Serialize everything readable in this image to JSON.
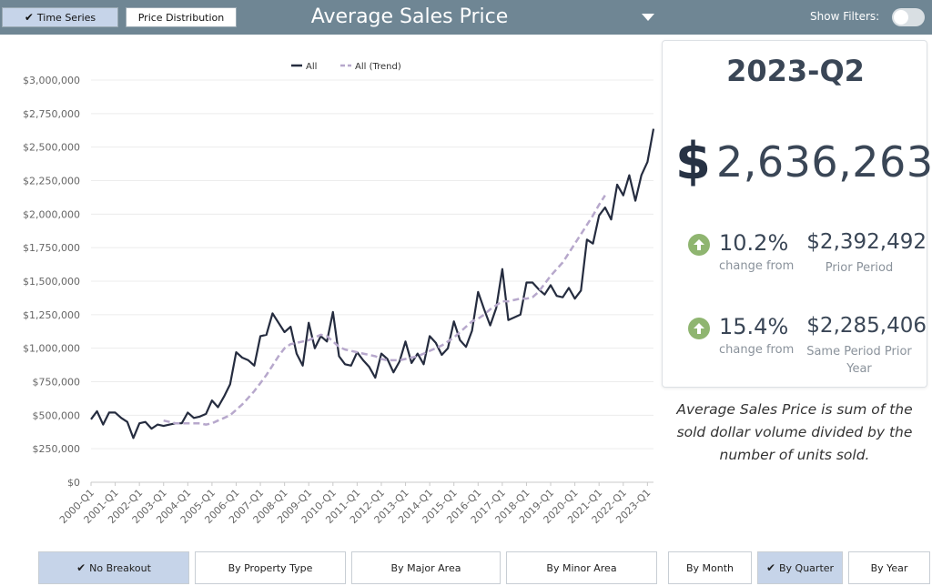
{
  "header": {
    "tabs": [
      {
        "label": "Time Series",
        "active": true
      },
      {
        "label": "Price Distribution",
        "active": false
      }
    ],
    "title": "Average Sales Price",
    "filters_label": "Show Filters:",
    "filters_on": false,
    "bar_color": "#6f8694"
  },
  "summary": {
    "period": "2023-Q2",
    "currency_symbol": "$",
    "value": "2,636,263",
    "comparisons": [
      {
        "pct": "10.2%",
        "pct_label": "change from",
        "value": "$2,392,492",
        "value_label": "Prior Period",
        "direction": "up-arrow-icon"
      },
      {
        "pct": "15.4%",
        "pct_label": "change from",
        "value": "$2,285,406",
        "value_label": "Same Period Prior Year",
        "direction": "up-arrow-icon"
      }
    ],
    "description": "Average Sales Price is sum of the sold dollar volume divided by the number of units sold."
  },
  "breakout_buttons": [
    {
      "label": "No Breakout",
      "active": true
    },
    {
      "label": "By Property Type",
      "active": false
    },
    {
      "label": "By Major Area",
      "active": false
    },
    {
      "label": "By Minor Area",
      "active": false
    }
  ],
  "period_buttons": [
    {
      "label": "By Month",
      "active": false
    },
    {
      "label": "By Quarter",
      "active": true
    },
    {
      "label": "By Year",
      "active": false
    }
  ],
  "chart_data": {
    "type": "line",
    "title": "",
    "xlabel": "",
    "ylabel": "",
    "ylim": [
      0,
      3000000
    ],
    "y_ticks": [
      "$0",
      "$250,000",
      "$500,000",
      "$750,000",
      "$1,000,000",
      "$1,250,000",
      "$1,500,000",
      "$1,750,000",
      "$2,000,000",
      "$2,250,000",
      "$2,500,000",
      "$2,750,000",
      "$3,000,000"
    ],
    "x_ticks": [
      "2000-Q1",
      "2001-Q1",
      "2002-Q1",
      "2003-Q1",
      "2004-Q1",
      "2005-Q1",
      "2006-Q1",
      "2007-Q1",
      "2008-Q1",
      "2009-Q1",
      "2010-Q1",
      "2011-Q1",
      "2012-Q1",
      "2013-Q1",
      "2014-Q1",
      "2015-Q1",
      "2016-Q1",
      "2017-Q1",
      "2018-Q1",
      "2019-Q1",
      "2020-Q1",
      "2021-Q1",
      "2022-Q1",
      "2023-Q1"
    ],
    "legend_position": "top",
    "grid": true,
    "series": [
      {
        "name": "All",
        "color": "#252c3f",
        "dashed": false,
        "start_quarter_index": 0,
        "values": [
          470000,
          530000,
          430000,
          520000,
          520000,
          480000,
          450000,
          330000,
          440000,
          450000,
          400000,
          430000,
          420000,
          430000,
          440000,
          440000,
          520000,
          480000,
          490000,
          510000,
          610000,
          560000,
          640000,
          730000,
          970000,
          930000,
          910000,
          870000,
          1090000,
          1100000,
          1260000,
          1190000,
          1120000,
          1160000,
          960000,
          870000,
          1190000,
          1000000,
          1090000,
          1050000,
          1270000,
          940000,
          880000,
          870000,
          970000,
          910000,
          860000,
          780000,
          960000,
          920000,
          820000,
          900000,
          1050000,
          890000,
          960000,
          880000,
          1090000,
          1040000,
          950000,
          1000000,
          1200000,
          1060000,
          1010000,
          1130000,
          1420000,
          1290000,
          1170000,
          1300000,
          1590000,
          1210000,
          1230000,
          1250000,
          1490000,
          1490000,
          1440000,
          1400000,
          1470000,
          1390000,
          1380000,
          1450000,
          1370000,
          1430000,
          1810000,
          1780000,
          1990000,
          2050000,
          1960000,
          2220000,
          2140000,
          2290000,
          2100000,
          2290000,
          2390000,
          2636263
        ]
      },
      {
        "name": "All (Trend)",
        "color": "#b7a8cc",
        "dashed": true,
        "start_quarter_index": 12,
        "values": [
          460000,
          450000,
          440000,
          440000,
          440000,
          440000,
          440000,
          430000,
          440000,
          460000,
          480000,
          500000,
          540000,
          580000,
          630000,
          680000,
          740000,
          800000,
          870000,
          940000,
          1000000,
          1030000,
          1040000,
          1050000,
          1060000,
          1080000,
          1100000,
          1090000,
          1050000,
          1010000,
          990000,
          980000,
          970000,
          960000,
          950000,
          940000,
          920000,
          910000,
          910000,
          910000,
          920000,
          930000,
          940000,
          960000,
          980000,
          1000000,
          1020000,
          1050000,
          1080000,
          1120000,
          1160000,
          1200000,
          1220000,
          1250000,
          1290000,
          1320000,
          1350000,
          1350000,
          1360000,
          1370000,
          1370000,
          1380000,
          1420000,
          1480000,
          1540000,
          1590000,
          1640000,
          1710000,
          1780000,
          1850000,
          1920000,
          1990000,
          2070000,
          2140000
        ]
      }
    ]
  }
}
